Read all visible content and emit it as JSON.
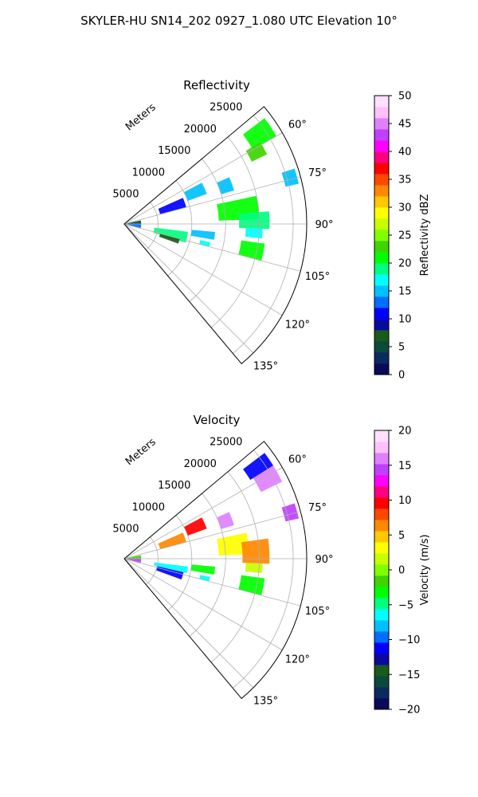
{
  "figure": {
    "title": "SKYLER-HU  SN14_202  0927_1.080 UTC Elevation 10°"
  },
  "chart_data": [
    {
      "type": "heatmap",
      "title": "Reflectivity",
      "range_label": "Meters",
      "range_ticks": [
        5000,
        10000,
        15000,
        20000,
        25000
      ],
      "range_ticks_text": [
        "5000",
        "10000",
        "15000",
        "20000",
        "25000"
      ],
      "rlim": [
        0,
        27000
      ],
      "azimuth_range_deg": [
        50,
        140
      ],
      "azimuth_ticks": [
        60,
        75,
        90,
        105,
        120,
        135
      ],
      "azimuth_ticks_text": [
        "60°",
        "75°",
        "90°",
        "105°",
        "120°",
        "135°"
      ],
      "grid": true,
      "colorbar": {
        "label": "Reflectivity dBZ",
        "min": 0,
        "max": 50,
        "ticks": [
          0,
          5,
          10,
          15,
          20,
          25,
          30,
          35,
          40,
          45,
          50
        ],
        "ticks_text": [
          "0",
          "5",
          "10",
          "15",
          "20",
          "25",
          "30",
          "35",
          "40",
          "45",
          "50"
        ]
      },
      "echoes": [
        {
          "az_deg": [
            53,
            60
          ],
          "r_m": [
            22000,
            26000
          ],
          "value": 20
        },
        {
          "az_deg": [
            59,
            64
          ],
          "r_m": [
            21000,
            23500
          ],
          "value": 22
        },
        {
          "az_deg": [
            72,
            77
          ],
          "r_m": [
            24500,
            26500
          ],
          "value": 15
        },
        {
          "az_deg": [
            66,
            73
          ],
          "r_m": [
            15000,
            17000
          ],
          "value": 15
        },
        {
          "az_deg": [
            62,
            70
          ],
          "r_m": [
            10000,
            13000
          ],
          "value": 14
        },
        {
          "az_deg": [
            66,
            75
          ],
          "r_m": [
            5500,
            9500
          ],
          "value": 11
        },
        {
          "az_deg": [
            78,
            88
          ],
          "r_m": [
            14000,
            20000
          ],
          "value": 20
        },
        {
          "az_deg": [
            85,
            92
          ],
          "r_m": [
            17000,
            21500
          ],
          "value": 18
        },
        {
          "az_deg": [
            92,
            96
          ],
          "r_m": [
            18000,
            20500
          ],
          "value": 16
        },
        {
          "az_deg": [
            97,
            107
          ],
          "r_m": [
            4500,
            9500
          ],
          "value": 18
        },
        {
          "az_deg": [
            105,
            110
          ],
          "r_m": [
            5500,
            8500
          ],
          "value": 6
        },
        {
          "az_deg": [
            95,
            100
          ],
          "r_m": [
            10000,
            13500
          ],
          "value": 14
        },
        {
          "az_deg": [
            102,
            105
          ],
          "r_m": [
            11500,
            13000
          ],
          "value": 16
        },
        {
          "az_deg": [
            98,
            105
          ],
          "r_m": [
            17500,
            21000
          ],
          "value": 20
        },
        {
          "az_deg": [
            78,
            90
          ],
          "r_m": [
            200,
            2500
          ],
          "value": 4
        },
        {
          "az_deg": [
            90,
            105
          ],
          "r_m": [
            300,
            2500
          ],
          "value": 12
        }
      ]
    },
    {
      "type": "heatmap",
      "title": "Velocity",
      "range_label": "Meters",
      "range_ticks": [
        5000,
        10000,
        15000,
        20000,
        25000
      ],
      "range_ticks_text": [
        "5000",
        "10000",
        "15000",
        "20000",
        "25000"
      ],
      "rlim": [
        0,
        27000
      ],
      "azimuth_range_deg": [
        50,
        140
      ],
      "azimuth_ticks": [
        60,
        75,
        90,
        105,
        120,
        135
      ],
      "azimuth_ticks_text": [
        "60°",
        "75°",
        "90°",
        "105°",
        "120°",
        "135°"
      ],
      "grid": true,
      "colorbar": {
        "label": "Velocity (m/s)",
        "min": -20,
        "max": 20,
        "ticks": [
          -20,
          -15,
          -10,
          -5,
          0,
          5,
          10,
          15,
          20
        ],
        "ticks_text": [
          "−20",
          "−15",
          "−10",
          "−5",
          "0",
          "5",
          "10",
          "15",
          "20"
        ]
      },
      "echoes": [
        {
          "az_deg": [
            53,
            58
          ],
          "r_m": [
            22000,
            26000
          ],
          "value": -12
        },
        {
          "az_deg": [
            58,
            64
          ],
          "r_m": [
            22500,
            26000
          ],
          "value": 16
        },
        {
          "az_deg": [
            72,
            77
          ],
          "r_m": [
            24500,
            26500
          ],
          "value": 15
        },
        {
          "az_deg": [
            66,
            73
          ],
          "r_m": [
            15000,
            17000
          ],
          "value": 16
        },
        {
          "az_deg": [
            62,
            70
          ],
          "r_m": [
            10000,
            13000
          ],
          "value": 9
        },
        {
          "az_deg": [
            66,
            75
          ],
          "r_m": [
            5500,
            9500
          ],
          "value": 7
        },
        {
          "az_deg": [
            78,
            88
          ],
          "r_m": [
            14000,
            18500
          ],
          "value": 3
        },
        {
          "az_deg": [
            82,
            92
          ],
          "r_m": [
            17500,
            21500
          ],
          "value": 7
        },
        {
          "az_deg": [
            92,
            96
          ],
          "r_m": [
            18000,
            20500
          ],
          "value": 2
        },
        {
          "az_deg": [
            97,
            103
          ],
          "r_m": [
            4500,
            9500
          ],
          "value": -7
        },
        {
          "az_deg": [
            103,
            110
          ],
          "r_m": [
            5000,
            9000
          ],
          "value": -12
        },
        {
          "az_deg": [
            95,
            100
          ],
          "r_m": [
            10000,
            13500
          ],
          "value": -3
        },
        {
          "az_deg": [
            102,
            105
          ],
          "r_m": [
            11500,
            13000
          ],
          "value": -7
        },
        {
          "az_deg": [
            98,
            105
          ],
          "r_m": [
            17500,
            21000
          ],
          "value": -4
        },
        {
          "az_deg": [
            78,
            90
          ],
          "r_m": [
            200,
            2500
          ],
          "value": -2
        },
        {
          "az_deg": [
            90,
            105
          ],
          "r_m": [
            300,
            2500
          ],
          "value": 14
        }
      ]
    }
  ],
  "colormap": [
    "#0a0a5a",
    "#0a2a60",
    "#0a4a3a",
    "#1a5a1a",
    "#0a0aa0",
    "#0000ff",
    "#006eff",
    "#00c0ff",
    "#00ffff",
    "#00ff80",
    "#00ff00",
    "#3fd400",
    "#80ff00",
    "#c8ff00",
    "#ffff00",
    "#ffc800",
    "#ff8800",
    "#ff4800",
    "#ff0000",
    "#ff0080",
    "#ff00ff",
    "#c040ff",
    "#e080ff",
    "#ffc0ff",
    "#ffe0ff"
  ]
}
